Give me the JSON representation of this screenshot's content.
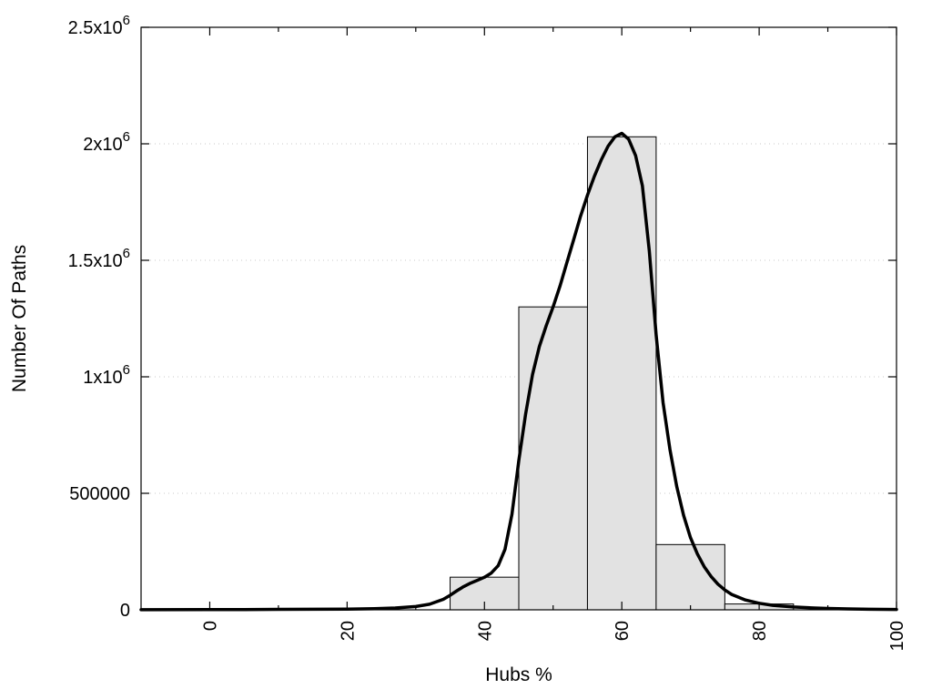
{
  "chart_data": {
    "type": "bar",
    "title": "",
    "xlabel": "Hubs %",
    "ylabel": "Number Of Paths",
    "xlim": [
      -10,
      100
    ],
    "ylim": [
      0,
      2500000
    ],
    "grid": "horizontal-dotted",
    "legend": "none",
    "x_major_ticks": [
      {
        "value": 0,
        "label": "0"
      },
      {
        "value": 20,
        "label": "20"
      },
      {
        "value": 40,
        "label": "40"
      },
      {
        "value": 60,
        "label": "60"
      },
      {
        "value": 80,
        "label": "80"
      },
      {
        "value": 100,
        "label": "100"
      }
    ],
    "x_minor_ticks": [
      10,
      30,
      50,
      70,
      90
    ],
    "y_ticks": [
      {
        "value": 0,
        "label": "0"
      },
      {
        "value": 500000,
        "label": "500000"
      },
      {
        "value": 1000000,
        "label": "1x10^6"
      },
      {
        "value": 1500000,
        "label": "1.5x10^6"
      },
      {
        "value": 2000000,
        "label": "2x10^6"
      },
      {
        "value": 2500000,
        "label": "2.5x10^6"
      }
    ],
    "colors": {
      "bar_fill": "#e2e2e2",
      "bar_stroke": "#000000",
      "curve": "#000000",
      "grid": "#c8c8c8",
      "border": "#000000"
    },
    "bars": {
      "bin_width": 10,
      "bins": [
        {
          "x0": 35,
          "x1": 45,
          "count": 140000
        },
        {
          "x0": 45,
          "x1": 55,
          "count": 1300000
        },
        {
          "x0": 55,
          "x1": 65,
          "count": 2030000
        },
        {
          "x0": 65,
          "x1": 75,
          "count": 280000
        },
        {
          "x0": 75,
          "x1": 85,
          "count": 25000
        }
      ]
    },
    "curve": {
      "name": "fitted-distribution",
      "stroke_width": 3.5,
      "points": [
        [
          -10,
          500
        ],
        [
          0,
          1000
        ],
        [
          5,
          1200
        ],
        [
          10,
          1800
        ],
        [
          15,
          2200
        ],
        [
          20,
          3000
        ],
        [
          24,
          5000
        ],
        [
          27,
          8000
        ],
        [
          30,
          14000
        ],
        [
          32,
          24000
        ],
        [
          34,
          45000
        ],
        [
          35,
          62000
        ],
        [
          36,
          82000
        ],
        [
          37,
          100000
        ],
        [
          38,
          115000
        ],
        [
          39,
          127000
        ],
        [
          40,
          140000
        ],
        [
          41,
          158000
        ],
        [
          42,
          190000
        ],
        [
          43,
          260000
        ],
        [
          44,
          410000
        ],
        [
          45,
          640000
        ],
        [
          46,
          840000
        ],
        [
          47,
          1010000
        ],
        [
          48,
          1130000
        ],
        [
          49,
          1220000
        ],
        [
          50,
          1300000
        ],
        [
          51,
          1390000
        ],
        [
          52,
          1490000
        ],
        [
          53,
          1590000
        ],
        [
          54,
          1690000
        ],
        [
          55,
          1780000
        ],
        [
          56,
          1860000
        ],
        [
          57,
          1930000
        ],
        [
          58,
          1990000
        ],
        [
          59,
          2030000
        ],
        [
          60,
          2045000
        ],
        [
          61,
          2020000
        ],
        [
          62,
          1950000
        ],
        [
          63,
          1820000
        ],
        [
          64,
          1540000
        ],
        [
          65,
          1180000
        ],
        [
          66,
          890000
        ],
        [
          67,
          690000
        ],
        [
          68,
          530000
        ],
        [
          69,
          405000
        ],
        [
          70,
          310000
        ],
        [
          71,
          240000
        ],
        [
          72,
          185000
        ],
        [
          73,
          143000
        ],
        [
          74,
          110000
        ],
        [
          75,
          85000
        ],
        [
          76,
          66000
        ],
        [
          78,
          42000
        ],
        [
          80,
          28000
        ],
        [
          82,
          19000
        ],
        [
          85,
          12000
        ],
        [
          88,
          8000
        ],
        [
          90,
          6000
        ],
        [
          93,
          4000
        ],
        [
          96,
          2500
        ],
        [
          100,
          1500
        ]
      ]
    }
  }
}
